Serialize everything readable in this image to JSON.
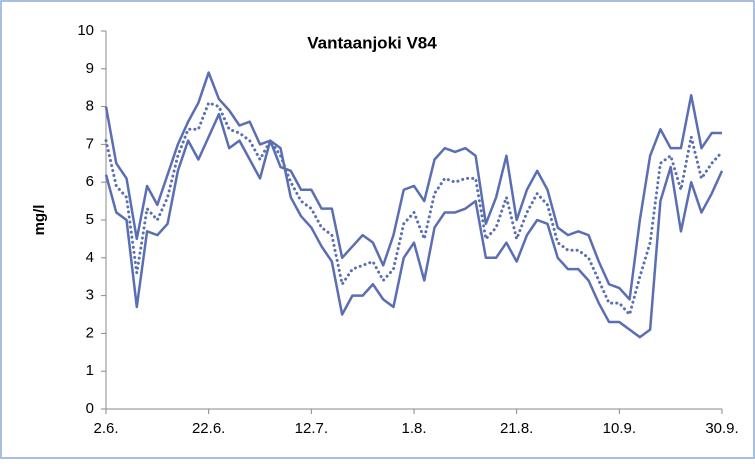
{
  "chart_data": {
    "type": "line",
    "title": "Vantaanjoki V84",
    "y_label": "mg/l",
    "categories": [
      "2.6.",
      null,
      null,
      null,
      null,
      null,
      null,
      null,
      null,
      null,
      "22.6.",
      null,
      null,
      null,
      null,
      null,
      null,
      null,
      null,
      null,
      "12.7.",
      null,
      null,
      null,
      null,
      null,
      null,
      null,
      null,
      null,
      "1.8.",
      null,
      null,
      null,
      null,
      null,
      null,
      null,
      null,
      null,
      "21.8.",
      null,
      null,
      null,
      null,
      null,
      null,
      null,
      null,
      null,
      "10.9.",
      null,
      null,
      null,
      null,
      null,
      null,
      null,
      null,
      null,
      "30.9."
    ],
    "series": [
      {
        "name": "upper",
        "color": "#5a6eb4",
        "dash": "solid",
        "values": [
          8.0,
          6.5,
          6.1,
          4.5,
          5.9,
          5.4,
          6.2,
          7.0,
          7.6,
          8.1,
          8.9,
          8.2,
          7.9,
          7.5,
          7.6,
          7.0,
          7.1,
          6.4,
          6.3,
          5.8,
          5.8,
          5.3,
          5.3,
          4.0,
          4.3,
          4.6,
          4.4,
          3.8,
          4.6,
          5.8,
          5.9,
          5.5,
          6.6,
          6.9,
          6.8,
          6.9,
          6.7,
          4.9,
          5.6,
          6.7,
          5.0,
          5.8,
          6.3,
          5.8,
          4.8,
          4.6,
          4.7,
          4.6,
          3.9,
          3.3,
          3.2,
          2.9,
          5.0,
          6.7,
          7.4,
          6.9,
          6.9,
          8.3,
          6.9,
          7.3,
          7.3
        ]
      },
      {
        "name": "mean",
        "color": "#5a6eb4",
        "dash": "dotted",
        "values": [
          7.1,
          5.9,
          5.6,
          3.6,
          5.3,
          5.0,
          5.6,
          6.7,
          7.4,
          7.4,
          8.1,
          8.0,
          7.4,
          7.3,
          7.1,
          6.6,
          7.1,
          6.7,
          6.0,
          5.5,
          5.3,
          4.8,
          4.6,
          3.3,
          3.7,
          3.8,
          3.9,
          3.4,
          3.7,
          4.9,
          5.2,
          4.5,
          5.7,
          6.1,
          6.0,
          6.1,
          6.1,
          4.5,
          4.8,
          5.6,
          4.5,
          5.2,
          5.7,
          5.4,
          4.4,
          4.2,
          4.2,
          4.0,
          3.4,
          2.8,
          2.8,
          2.5,
          3.5,
          4.4,
          6.5,
          6.7,
          5.8,
          7.2,
          6.1,
          6.5,
          6.8
        ]
      },
      {
        "name": "lower",
        "color": "#5a6eb4",
        "dash": "solid",
        "values": [
          6.2,
          5.2,
          5.0,
          2.7,
          4.7,
          4.6,
          4.9,
          6.3,
          7.1,
          6.6,
          7.2,
          7.8,
          6.9,
          7.1,
          6.6,
          6.1,
          7.1,
          6.9,
          5.6,
          5.1,
          4.8,
          4.3,
          3.9,
          2.5,
          3.0,
          3.0,
          3.3,
          2.9,
          2.7,
          4.0,
          4.4,
          3.4,
          4.8,
          5.2,
          5.2,
          5.3,
          5.5,
          4.0,
          4.0,
          4.4,
          3.9,
          4.6,
          5.0,
          4.9,
          4.0,
          3.7,
          3.7,
          3.4,
          2.8,
          2.3,
          2.3,
          2.1,
          1.9,
          2.1,
          5.5,
          6.4,
          4.7,
          6.0,
          5.2,
          5.7,
          6.3
        ]
      }
    ],
    "ylim": [
      0,
      10
    ],
    "yticks": [
      0,
      1,
      2,
      3,
      4,
      5,
      6,
      7,
      8,
      9,
      10
    ],
    "grid": false,
    "legend": false
  }
}
